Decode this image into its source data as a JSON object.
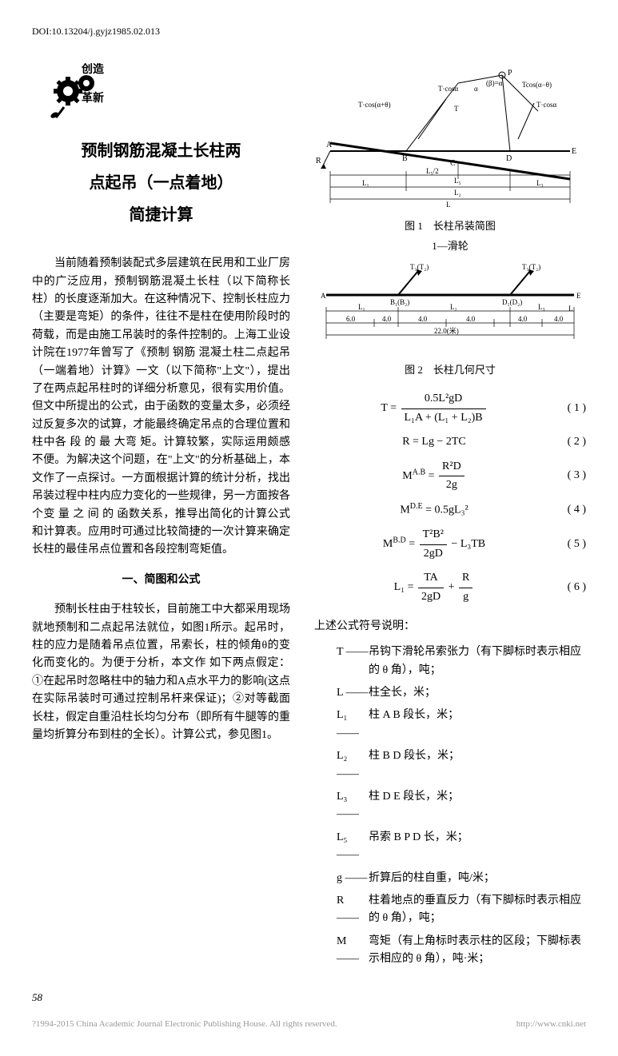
{
  "doi": "DOI:10.13204/j.gyjz1985.02.013",
  "logo_text": "创造革新",
  "title_line1": "预制钢筋混凝土长柱两",
  "title_line2": "点起吊（一点着地）",
  "title_line3": "简捷计算",
  "para1": "当前随着预制装配式多层建筑在民用和工业厂房中的广泛应用，预制钢筋混凝土长柱（以下简称长柱）的长度逐渐加大。在这种情况下、控制长柱应力（主要是弯矩）的条件，往往不是柱在使用阶段时的荷载，而是由施工吊装时的条件控制的。上海工业设计院在1977年曾写了《预制 钢筋 混凝土柱二点起吊（一端着地）计算》一文（以下简称\"上文\"），提出了在两点起吊柱时的详细分析意见，很有实用价值。但文中所提出的公式，由于函数的变量太多，必须经过反复多次的试算，才能最终确定吊点的合理位置和柱中各 段 的 最 大弯 矩。计算较繁，实际运用颇感不便。为解决这个问题，在\"上文\"的分析基础上，本文作了一点探讨。一方面根据计算的统计分析，找出吊装过程中柱内应力变化的一些规律，另一方面按各个变 量 之 间 的 函数关系，推导出简化的计算公式和计算表。应用时可通过比较简捷的一次计算来确定长柱的最佳吊点位置和各段控制弯矩值。",
  "heading1": "一、简图和公式",
  "para2": "预制长柱由于柱较长，目前施工中大都采用现场就地预制和二点起吊法就位，如图1所示。起吊时，柱的应力是随着吊点位置，吊索长，柱的倾角θ的变化而变化的。为便于分析，本文作 如下两点假定：①在起吊时忽略柱中的轴力和A点水平力的影响(这点在实际吊装时可通过控制吊杆来保证)；②对等截面长柱，假定自重沿柱长均匀分布（即所有牛腿等的重量均折算分布到柱的全长）。计算公式，参见图1。",
  "fig1_caption": "图 1　长柱吊装简图",
  "fig1_sub": "1—滑轮",
  "fig2_caption": "图 2　长柱几何尺寸",
  "fig1_labels": {
    "tcosa1": "T·cosα",
    "tcosa2": "T·cos(α+θ)",
    "tcosa3": "Tcos(α-θ)",
    "tcosa4": "T·cosα",
    "T": "T",
    "alpha": "α",
    "beta": "(β)=α",
    "A": "A",
    "B": "B",
    "C": "C",
    "D": "D",
    "E": "E",
    "R": "R",
    "L": "L",
    "L1": "L₁",
    "L2": "L₂",
    "L3": "L₃",
    "Ls": "L₅",
    "half": "L₅/2"
  },
  "fig2_labels": {
    "T1": "T₁(T₂)",
    "T2": "T₁(T₂)",
    "A": "A",
    "B": "B₁(B₂)",
    "D": "D₁(D₂)",
    "E": "E",
    "L": "L",
    "L1": "L₁",
    "L2": "L₂",
    "L3": "L₃",
    "d60": "6.0",
    "d40": "4.0",
    "d220": "22.0(米)"
  },
  "equations": [
    {
      "lhs": "T =",
      "num": "0.5L²gD",
      "den": "L₁A + (L₁ + L₂)B",
      "num_eq": "( 1 )"
    },
    {
      "lhs": "R = Lg − 2TC",
      "num_eq": "( 2 )"
    },
    {
      "lhs": "M<sup>A.B</sup> =",
      "num": "R²D",
      "den": "2g",
      "num_eq": "( 3 )"
    },
    {
      "lhs": "M<sup>D.E</sup> = 0.5gL₃²",
      "num_eq": "( 4 )"
    },
    {
      "lhs": "M<sup>B.D</sup> =",
      "num": "T²B²",
      "den": "2gD",
      "tail": " − L₃TB",
      "num_eq": "( 5 )"
    },
    {
      "lhs": "L₁ =",
      "num": "TA",
      "den": "2gD",
      "plus": " + ",
      "num2": "R",
      "den2": "g",
      "num_eq": "( 6 )"
    }
  ],
  "eq1_lhs": "T =",
  "eq1_num": "0.5L²gD",
  "eq1_den": "L₁A + (L₁ + L₂)B",
  "eq1_n": "( 1 )",
  "eq2_body": "R = Lg − 2TC",
  "eq2_n": "( 2 )",
  "eq3_lhs": "M",
  "eq3_sup": "A.B",
  "eq3_eq": " = ",
  "eq3_num": "R²D",
  "eq3_den": "2g",
  "eq3_n": "( 3 )",
  "eq4_lhs": "M",
  "eq4_sup": "D.E",
  "eq4_body": " = 0.5gL₃²",
  "eq4_n": "( 4 )",
  "eq5_lhs": "M",
  "eq5_sup": "B.D",
  "eq5_eq": " = ",
  "eq5_num": "T²B²",
  "eq5_den": "2gD",
  "eq5_tail": " − L₃TB",
  "eq5_n": "( 5 )",
  "eq6_lhs": "L₁ = ",
  "eq6_num1": "TA",
  "eq6_den1": "2gD",
  "eq6_plus": " + ",
  "eq6_num2": "R",
  "eq6_den2": "g",
  "eq6_n": "( 6 )",
  "symbols_intro": "上述公式符号说明：",
  "symbols": [
    {
      "k": "T ——",
      "v": "吊钩下滑轮吊索张力（有下脚标时表示相应的 θ 角），吨；"
    },
    {
      "k": "L ——",
      "v": "柱全长，米；"
    },
    {
      "k": "L₁——",
      "v": "柱 A B 段长，米；"
    },
    {
      "k": "L₂——",
      "v": "柱 B D 段长，米；"
    },
    {
      "k": "L₃——",
      "v": "柱 D E 段长，米；"
    },
    {
      "k": "L₅——",
      "v": "吊索 B P D 长，米；"
    },
    {
      "k": "g ——",
      "v": "折算后的柱自重，吨/米；"
    },
    {
      "k": "R ——",
      "v": "柱着地点的垂直反力（有下脚标时表示相应的 θ 角），吨；"
    },
    {
      "k": "M——",
      "v": "弯矩（有上角标时表示柱的区段；下脚标表示相应的 θ 角），吨·米；"
    }
  ],
  "page_num": "58",
  "footer_left": "?1994-2015 China Academic Journal Electronic Publishing House. All rights reserved.",
  "footer_right": "http://www.cnki.net"
}
